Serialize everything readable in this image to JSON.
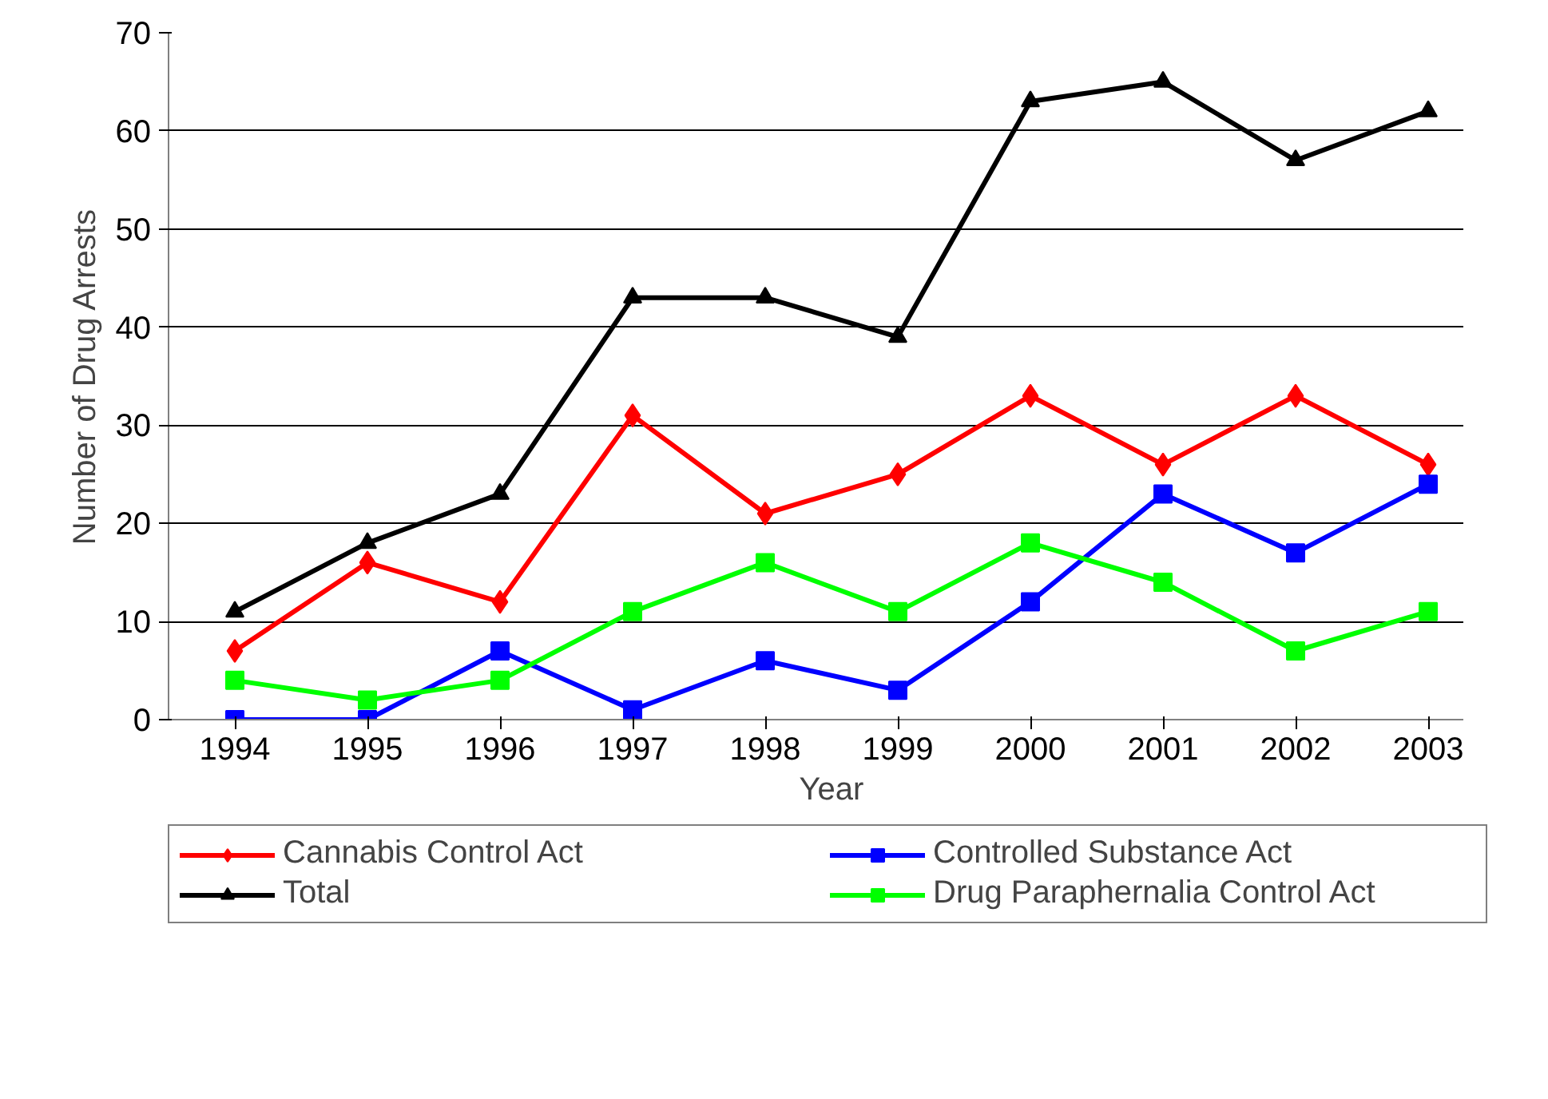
{
  "chart_data": {
    "type": "line",
    "xlabel": "Year",
    "ylabel": "Number of Drug Arrests",
    "categories": [
      "1994",
      "1995",
      "1996",
      "1997",
      "1998",
      "1999",
      "2000",
      "2001",
      "2002",
      "2003"
    ],
    "ylim": [
      0,
      70
    ],
    "yticks": [
      0,
      10,
      20,
      30,
      40,
      50,
      60,
      70
    ],
    "grid": "y",
    "legend": "bottom",
    "series": [
      {
        "name": "Cannabis Control Act",
        "color": "#ff0000",
        "marker": "diamond",
        "values": [
          7,
          16,
          12,
          31,
          21,
          25,
          33,
          26,
          33,
          26
        ]
      },
      {
        "name": "Controlled Substance Act",
        "color": "#0000ff",
        "marker": "square",
        "values": [
          0,
          0,
          7,
          1,
          6,
          3,
          12,
          23,
          17,
          24
        ]
      },
      {
        "name": "Total",
        "color": "#000000",
        "marker": "triangle",
        "values": [
          11,
          18,
          23,
          43,
          43,
          39,
          63,
          65,
          57,
          62
        ]
      },
      {
        "name": "Drug Paraphernalia Control Act",
        "color": "#00ff00",
        "marker": "square",
        "values": [
          4,
          2,
          4,
          11,
          16,
          11,
          18,
          14,
          7,
          11
        ]
      }
    ]
  }
}
